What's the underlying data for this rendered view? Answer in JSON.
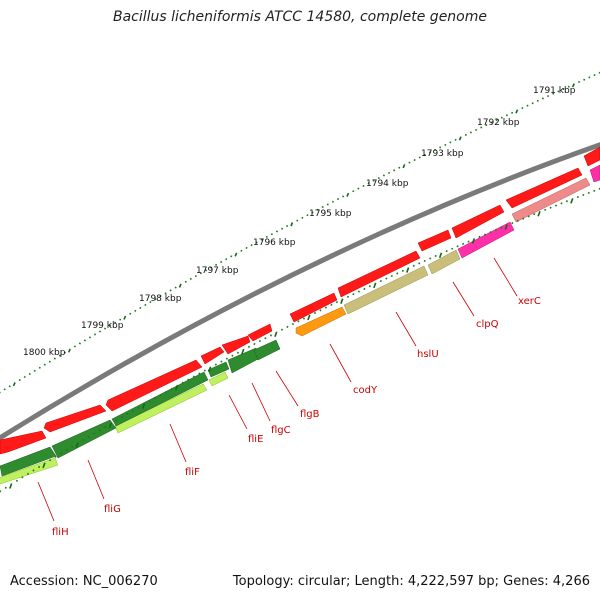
{
  "title": "Bacillus licheniformis ATCC 14580, complete genome",
  "footer": {
    "accession": "Accession: NC_006270",
    "topology": "Topology: circular; Length: 4,222,597 bp; Genes: 4,266"
  },
  "colors": {
    "backbone": "#7a7a7a",
    "cds_forward": "#ff1a1a",
    "flagellar": "#2e8b2e",
    "flagellar_light": "#bff060",
    "codY": "#ff9a10",
    "hslU": "#c9bf7a",
    "clpQ": "#ff2fa8",
    "xerC": "#ef8a8a",
    "label": "#cc0000",
    "tick_minor": "#1d7a1d",
    "tick_major": "#136913"
  },
  "kbp_ticks": [
    "1791 kbp",
    "1792 kbp",
    "1793 kbp",
    "1794 kbp",
    "1795 kbp",
    "1796 kbp",
    "1797 kbp",
    "1798 kbp",
    "1799 kbp",
    "1800 kbp"
  ],
  "genes": [
    {
      "name": "xerC"
    },
    {
      "name": "clpQ"
    },
    {
      "name": "hslU"
    },
    {
      "name": "codY"
    },
    {
      "name": "flgB"
    },
    {
      "name": "flgC"
    },
    {
      "name": "fliE"
    },
    {
      "name": "fliF"
    },
    {
      "name": "fliG"
    },
    {
      "name": "fliH"
    }
  ]
}
